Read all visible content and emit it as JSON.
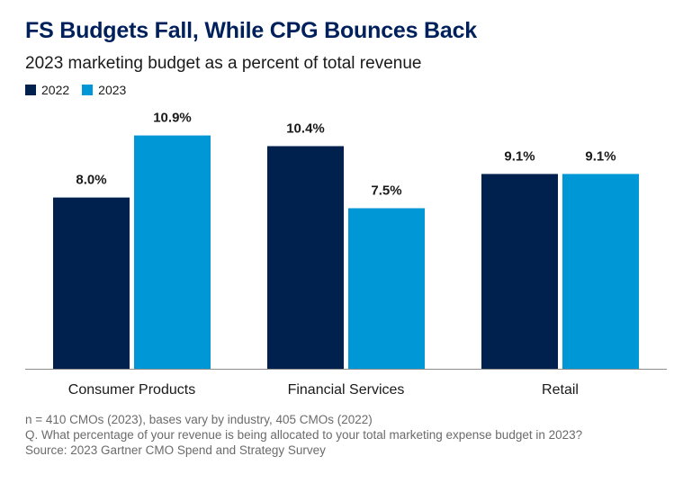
{
  "header": {
    "title": "FS Budgets Fall, While CPG Bounces Back",
    "subtitle": "2023 marketing budget as a percent of total revenue"
  },
  "colors": {
    "series_2022": "#00204e",
    "series_2023": "#0097d7",
    "title": "#00205b",
    "axis": "#8c8c8c"
  },
  "chart_data": {
    "type": "bar",
    "title": "FS Budgets Fall, While CPG Bounces Back",
    "subtitle": "2023 marketing budget as a percent of total revenue",
    "categories": [
      "Consumer Products",
      "Financial Services",
      "Retail"
    ],
    "series": [
      {
        "name": "2022",
        "values": [
          8.0,
          10.4,
          9.1
        ],
        "labels": [
          "8.0%",
          "10.4%",
          "9.1%"
        ]
      },
      {
        "name": "2023",
        "values": [
          10.9,
          7.5,
          9.1
        ],
        "labels": [
          "10.9%",
          "7.5%",
          "9.1%"
        ]
      }
    ],
    "ylim": [
      0,
      11
    ],
    "xlabel": "",
    "ylabel": "",
    "legend": "top-left",
    "grid": false
  },
  "footnotes": {
    "line1": "n = 410 CMOs (2023), bases vary by industry, 405 CMOs (2022)",
    "line2": "Q. What percentage of your revenue is being allocated to your total marketing expense budget in 2023?",
    "line3": "Source: 2023 Gartner CMO Spend and Strategy Survey"
  }
}
